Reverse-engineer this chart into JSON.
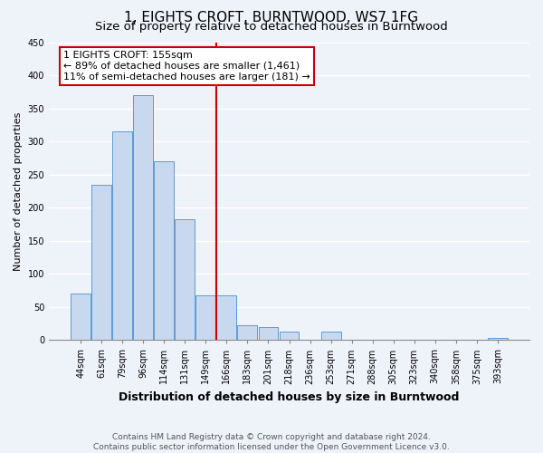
{
  "title": "1, EIGHTS CROFT, BURNTWOOD, WS7 1FG",
  "subtitle": "Size of property relative to detached houses in Burntwood",
  "xlabel": "Distribution of detached houses by size in Burntwood",
  "ylabel": "Number of detached properties",
  "bar_labels": [
    "44sqm",
    "61sqm",
    "79sqm",
    "96sqm",
    "114sqm",
    "131sqm",
    "149sqm",
    "166sqm",
    "183sqm",
    "201sqm",
    "218sqm",
    "236sqm",
    "253sqm",
    "271sqm",
    "288sqm",
    "305sqm",
    "323sqm",
    "340sqm",
    "358sqm",
    "375sqm",
    "393sqm"
  ],
  "bar_heights": [
    70,
    235,
    315,
    370,
    270,
    183,
    68,
    68,
    22,
    20,
    12,
    0,
    12,
    0,
    0,
    0,
    0,
    0,
    0,
    0,
    3
  ],
  "bar_color": "#c8d9ef",
  "bar_edge_color": "#5b9bd5",
  "vline_x_idx": 6.5,
  "vline_color": "#cc0000",
  "annotation_title": "1 EIGHTS CROFT: 155sqm",
  "annotation_line1": "← 89% of detached houses are smaller (1,461)",
  "annotation_line2": "11% of semi-detached houses are larger (181) →",
  "annotation_box_color": "#ffffff",
  "annotation_box_edge": "#cc0000",
  "ylim": [
    0,
    450
  ],
  "yticks": [
    0,
    50,
    100,
    150,
    200,
    250,
    300,
    350,
    400,
    450
  ],
  "footer_line1": "Contains HM Land Registry data © Crown copyright and database right 2024.",
  "footer_line2": "Contains public sector information licensed under the Open Government Licence v3.0.",
  "bg_color": "#eef2f9",
  "plot_bg_color": "#eef2f9",
  "grid_color": "#ffffff",
  "title_fontsize": 11,
  "subtitle_fontsize": 9.5,
  "ylabel_fontsize": 8,
  "xlabel_fontsize": 9,
  "tick_fontsize": 7,
  "ann_fontsize": 8,
  "footer_fontsize": 6.5
}
